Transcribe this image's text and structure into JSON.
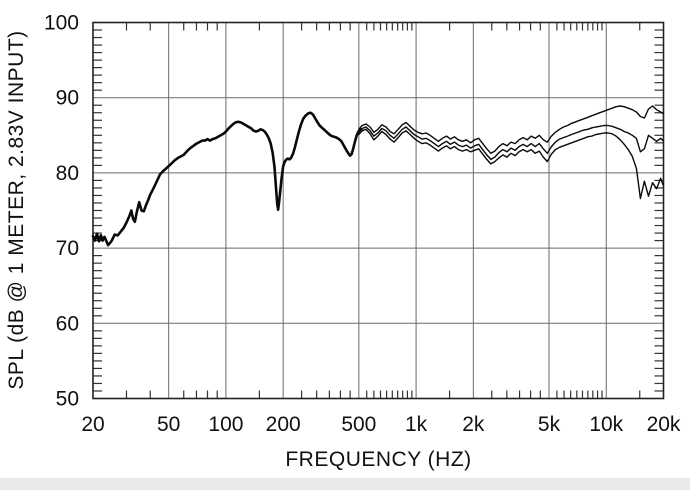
{
  "window": {
    "background": "#ffffff",
    "footer_strip_color": "#e9e9e9"
  },
  "colors": {
    "curve": "#0a0a0a",
    "grid": "#6a6a6a",
    "frame": "#222222",
    "tick": "#333333",
    "text": "#111111"
  },
  "chart_data": {
    "type": "line",
    "title": "",
    "xlabel": "FREQUENCY  (HZ)",
    "ylabel": "SPL (dB @ 1 METER, 2.83V INPUT)",
    "x_scale": "log",
    "y_scale": "linear",
    "xlim": [
      20,
      20000
    ],
    "ylim": [
      50,
      100
    ],
    "grid": true,
    "legend_position": "none",
    "x_major_ticks": {
      "values": [
        20,
        50,
        100,
        200,
        500,
        1000,
        2000,
        5000,
        10000,
        20000
      ],
      "labels": [
        "20",
        "50",
        "100",
        "200",
        "500",
        "1k",
        "2k",
        "5k",
        "10k",
        "20k"
      ]
    },
    "y_major_ticks": {
      "values": [
        100,
        90,
        80,
        70,
        60,
        50
      ],
      "labels": [
        "100",
        "90",
        "80",
        "70",
        "60",
        "50"
      ]
    },
    "grid_x_values": [
      50,
      100,
      200,
      500,
      1000,
      2000,
      5000,
      10000
    ],
    "grid_y_values": [
      60,
      70,
      80,
      90
    ],
    "x_minor_ticks": [
      30,
      40,
      60,
      70,
      80,
      90,
      150,
      250,
      300,
      350,
      400,
      450,
      550,
      600,
      650,
      700,
      750,
      800,
      850,
      900,
      950,
      1500,
      2500,
      3000,
      3500,
      4000,
      4500,
      5500,
      6000,
      6500,
      7000,
      7500,
      8000,
      8500,
      9000,
      9500,
      15000
    ],
    "y_minor_step": 1,
    "series": [
      {
        "name": "merged-traces-low-frequency",
        "stroke_width": 2.6,
        "x": [
          20,
          20.5,
          21,
          21.5,
          22,
          22.5,
          23,
          24,
          25,
          26,
          27,
          28,
          29,
          30,
          31,
          31.8,
          32.5,
          33.2,
          34,
          35,
          36,
          37,
          38,
          39,
          40,
          41.5,
          43,
          45,
          47,
          48.5,
          50,
          52,
          54,
          56,
          58,
          60,
          62.5,
          65,
          67.5,
          70,
          72.5,
          75,
          77.5,
          80,
          82.5,
          85,
          88,
          91,
          94,
          97,
          100,
          104,
          108,
          112,
          116,
          120,
          124,
          128,
          132,
          136,
          140,
          144,
          148,
          152,
          156,
          160,
          164,
          168,
          172,
          176,
          180,
          183,
          186,
          188,
          190,
          193,
          196,
          200,
          204,
          208,
          212,
          216,
          220,
          225,
          230,
          236,
          242,
          248,
          255,
          262,
          270,
          278,
          286,
          294,
          302,
          311,
          320,
          330,
          340,
          350,
          360,
          371,
          382,
          393,
          405,
          417,
          430,
          443,
          450,
          458,
          467,
          476,
          486,
          495,
          505,
          515
        ],
        "y": [
          71.6,
          71.0,
          71.9,
          70.9,
          71.7,
          71.0,
          71.5,
          70.4,
          70.9,
          71.8,
          71.7,
          72.2,
          72.7,
          73.4,
          74.2,
          75.0,
          73.9,
          73.5,
          74.8,
          76.1,
          75.0,
          74.9,
          75.7,
          76.4,
          77.1,
          77.9,
          78.7,
          79.8,
          80.3,
          80.6,
          80.9,
          81.3,
          81.7,
          82.0,
          82.2,
          82.4,
          82.9,
          83.3,
          83.6,
          83.9,
          84.1,
          84.3,
          84.3,
          84.5,
          84.3,
          84.5,
          84.6,
          84.8,
          85.0,
          85.2,
          85.5,
          86.0,
          86.4,
          86.7,
          86.8,
          86.7,
          86.5,
          86.3,
          86.1,
          85.9,
          85.6,
          85.5,
          85.6,
          85.8,
          85.7,
          85.5,
          85.1,
          84.6,
          83.9,
          82.7,
          80.8,
          78.4,
          75.9,
          75.1,
          75.9,
          77.5,
          79.2,
          80.9,
          81.5,
          81.8,
          81.9,
          81.8,
          82.0,
          82.5,
          83.3,
          84.4,
          85.5,
          86.4,
          87.2,
          87.6,
          87.9,
          88.0,
          87.8,
          87.3,
          86.8,
          86.3,
          86.0,
          85.7,
          85.4,
          85.1,
          84.9,
          84.8,
          84.7,
          84.5,
          84.2,
          83.6,
          83.0,
          82.5,
          82.3,
          82.5,
          83.2,
          84.1,
          84.9,
          85.4,
          85.7,
          85.8
        ]
      },
      {
        "name": "upper-trace",
        "stroke_width": 1.4,
        "x": [
          500,
          520,
          545,
          572,
          600,
          630,
          660,
          695,
          730,
          765,
          805,
          845,
          885,
          930,
          975,
          1025,
          1075,
          1130,
          1185,
          1245,
          1310,
          1375,
          1445,
          1515,
          1590,
          1670,
          1755,
          1840,
          1935,
          2030,
          2135,
          2240,
          2355,
          2470,
          2595,
          2725,
          2860,
          3005,
          3155,
          3315,
          3480,
          3655,
          3840,
          4030,
          4230,
          4445,
          4665,
          4900,
          5145,
          5405,
          5675,
          5960,
          6260,
          6575,
          6905,
          7250,
          7615,
          8000,
          8400,
          8820,
          9265,
          9730,
          10220,
          10730,
          11270,
          11835,
          12430,
          13055,
          13710,
          14400,
          15120,
          15880,
          16680,
          17515,
          18395,
          19320,
          19900
        ],
        "y": [
          85.8,
          86.3,
          86.5,
          86.1,
          85.4,
          85.8,
          86.4,
          86.1,
          85.5,
          85.2,
          85.8,
          86.4,
          86.7,
          86.2,
          85.7,
          85.4,
          85.2,
          85.3,
          85.0,
          84.6,
          84.2,
          84.6,
          84.9,
          84.5,
          84.8,
          84.4,
          84.2,
          84.4,
          84.0,
          84.4,
          84.6,
          83.9,
          83.2,
          82.6,
          82.9,
          83.5,
          83.9,
          83.6,
          84.1,
          83.9,
          84.4,
          84.7,
          84.4,
          84.9,
          84.6,
          85.0,
          84.4,
          84.1,
          84.9,
          85.4,
          85.8,
          86.1,
          86.3,
          86.6,
          86.8,
          87.0,
          87.2,
          87.4,
          87.6,
          87.8,
          88.0,
          88.2,
          88.4,
          88.6,
          88.8,
          88.9,
          88.8,
          88.6,
          88.4,
          88.1,
          87.5,
          87.3,
          88.5,
          88.9,
          88.4,
          88.1,
          87.9
        ]
      },
      {
        "name": "middle-trace",
        "stroke_width": 1.4,
        "x": [
          500,
          520,
          545,
          572,
          600,
          630,
          660,
          695,
          730,
          765,
          805,
          845,
          885,
          930,
          975,
          1025,
          1075,
          1130,
          1185,
          1245,
          1310,
          1375,
          1445,
          1515,
          1590,
          1670,
          1755,
          1840,
          1935,
          2030,
          2135,
          2240,
          2355,
          2470,
          2595,
          2725,
          2860,
          3005,
          3155,
          3315,
          3480,
          3655,
          3840,
          4030,
          4230,
          4445,
          4665,
          4900,
          5145,
          5405,
          5675,
          5960,
          6260,
          6575,
          6905,
          7250,
          7615,
          8000,
          8400,
          8820,
          9265,
          9730,
          10220,
          10730,
          11270,
          11835,
          12430,
          13055,
          13710,
          14400,
          15120,
          15880,
          16680,
          17515,
          18395,
          19320,
          19900
        ],
        "y": [
          85.4,
          85.9,
          86.1,
          85.6,
          84.9,
          85.3,
          85.9,
          85.6,
          85.0,
          84.6,
          85.2,
          85.8,
          86.1,
          85.6,
          85.1,
          84.8,
          84.5,
          84.6,
          84.3,
          83.9,
          83.5,
          83.9,
          84.2,
          83.8,
          84.1,
          83.7,
          83.5,
          83.7,
          83.3,
          83.6,
          83.8,
          83.1,
          82.4,
          81.8,
          82.1,
          82.7,
          83.1,
          82.8,
          83.3,
          83.0,
          83.5,
          83.8,
          83.5,
          83.9,
          83.5,
          83.9,
          83.2,
          82.6,
          83.5,
          84.1,
          84.5,
          84.7,
          84.9,
          85.1,
          85.3,
          85.5,
          85.7,
          85.8,
          86.0,
          86.1,
          86.2,
          86.3,
          86.3,
          86.2,
          86.0,
          85.8,
          85.5,
          85.3,
          85.0,
          84.6,
          82.8,
          83.2,
          85.0,
          84.6,
          84.2,
          84.6,
          84.3
        ]
      },
      {
        "name": "lower-trace",
        "stroke_width": 1.4,
        "x": [
          500,
          520,
          545,
          572,
          600,
          630,
          660,
          695,
          730,
          765,
          805,
          845,
          885,
          930,
          975,
          1025,
          1075,
          1130,
          1185,
          1245,
          1310,
          1375,
          1445,
          1515,
          1590,
          1670,
          1755,
          1840,
          1935,
          2030,
          2135,
          2240,
          2355,
          2470,
          2595,
          2725,
          2860,
          3005,
          3155,
          3315,
          3480,
          3655,
          3840,
          4030,
          4230,
          4445,
          4665,
          4900,
          5145,
          5405,
          5675,
          5960,
          6260,
          6575,
          6905,
          7250,
          7615,
          8000,
          8400,
          8820,
          9265,
          9730,
          10220,
          10730,
          11270,
          11835,
          12430,
          13055,
          13710,
          14400,
          15120,
          15880,
          16680,
          17515,
          18395,
          19320,
          19900
        ],
        "y": [
          85.1,
          85.6,
          85.8,
          85.2,
          84.4,
          84.9,
          85.5,
          85.1,
          84.5,
          84.1,
          84.7,
          85.3,
          85.6,
          85.1,
          84.6,
          84.2,
          83.9,
          84.0,
          83.7,
          83.3,
          82.9,
          83.3,
          83.6,
          83.2,
          83.5,
          83.1,
          82.9,
          83.1,
          82.8,
          83.0,
          83.2,
          82.5,
          81.8,
          81.2,
          81.5,
          82.0,
          82.4,
          82.1,
          82.6,
          82.3,
          82.8,
          83.1,
          82.8,
          83.1,
          82.6,
          82.9,
          82.1,
          81.5,
          82.5,
          83.1,
          83.4,
          83.6,
          83.8,
          84.0,
          84.2,
          84.4,
          84.6,
          84.8,
          84.9,
          85.1,
          85.2,
          85.3,
          85.3,
          85.2,
          84.9,
          84.4,
          83.8,
          83.1,
          82.2,
          80.6,
          76.6,
          78.9,
          76.9,
          78.7,
          77.9,
          79.3,
          78.4
        ]
      }
    ]
  }
}
